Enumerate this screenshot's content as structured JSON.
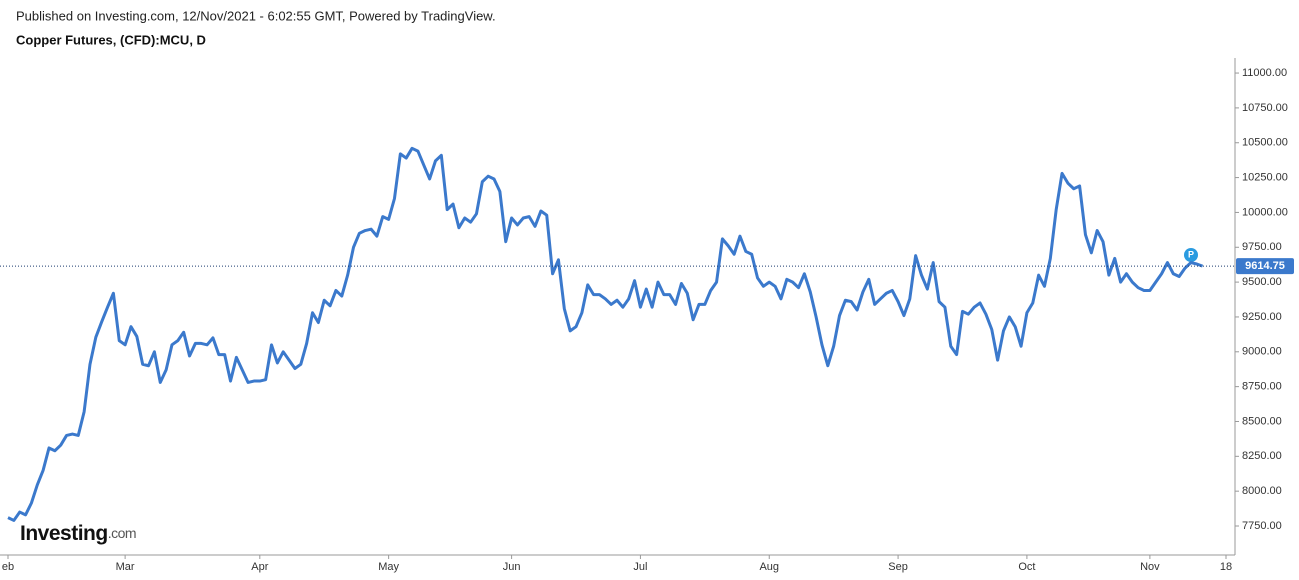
{
  "header": "Published on Investing.com, 12/Nov/2021 - 6:02:55 GMT, Powered by TradingView.",
  "logo": {
    "name": "Investing",
    "suffix": ".com"
  },
  "chart_data": {
    "type": "line",
    "title": "Copper Futures, (CFD):MCU, D",
    "categories": [
      "eb",
      null,
      null,
      null,
      null,
      null,
      null,
      null,
      null,
      null,
      null,
      null,
      null,
      null,
      null,
      null,
      null,
      null,
      null,
      null,
      "Mar",
      null,
      null,
      null,
      null,
      null,
      null,
      null,
      null,
      null,
      null,
      null,
      null,
      null,
      null,
      null,
      null,
      null,
      null,
      null,
      null,
      null,
      null,
      "Apr",
      null,
      null,
      null,
      null,
      null,
      null,
      null,
      null,
      null,
      null,
      null,
      null,
      null,
      null,
      null,
      null,
      null,
      null,
      null,
      null,
      null,
      "May",
      null,
      null,
      null,
      null,
      null,
      null,
      null,
      null,
      null,
      null,
      null,
      null,
      null,
      null,
      null,
      null,
      null,
      null,
      null,
      null,
      "Jun",
      null,
      null,
      null,
      null,
      null,
      null,
      null,
      null,
      null,
      null,
      null,
      null,
      null,
      null,
      null,
      null,
      null,
      null,
      null,
      null,
      null,
      "Jul",
      null,
      null,
      null,
      null,
      null,
      null,
      null,
      null,
      null,
      null,
      null,
      null,
      null,
      null,
      null,
      null,
      null,
      null,
      null,
      null,
      null,
      "Aug",
      null,
      null,
      null,
      null,
      null,
      null,
      null,
      null,
      null,
      null,
      null,
      null,
      null,
      null,
      null,
      null,
      null,
      null,
      null,
      null,
      null,
      "Sep",
      null,
      null,
      null,
      null,
      null,
      null,
      null,
      null,
      null,
      null,
      null,
      null,
      null,
      null,
      null,
      null,
      null,
      null,
      null,
      null,
      null,
      "Oct",
      null,
      null,
      null,
      null,
      null,
      null,
      null,
      null,
      null,
      null,
      null,
      null,
      null,
      null,
      null,
      null,
      null,
      null,
      null,
      null,
      "Nov",
      null,
      null,
      null,
      null,
      null,
      null,
      null,
      null,
      null,
      null,
      null,
      null,
      "18"
    ],
    "series": [
      {
        "color": "#3b79cc",
        "values": [
          7810,
          7790,
          7850,
          7830,
          7915,
          8045,
          8150,
          8310,
          8290,
          8330,
          8400,
          8410,
          8400,
          8570,
          8910,
          9105,
          9215,
          9320,
          9420,
          9080,
          9050,
          9180,
          9110,
          8910,
          8900,
          9000,
          8780,
          8870,
          9050,
          9080,
          9140,
          8970,
          9060,
          9060,
          9050,
          9100,
          8980,
          8980,
          8790,
          8960,
          8870,
          8780,
          8790,
          8790,
          8800,
          9050,
          8920,
          9000,
          8940,
          8880,
          8910,
          9060,
          9280,
          9210,
          9370,
          9330,
          9440,
          9400,
          9550,
          9750,
          9850,
          9870,
          9880,
          9830,
          9970,
          9950,
          10100,
          10420,
          10390,
          10460,
          10440,
          10340,
          10240,
          10370,
          10410,
          10020,
          10060,
          9890,
          9960,
          9930,
          9990,
          10220,
          10260,
          10240,
          10150,
          9790,
          9960,
          9910,
          9960,
          9970,
          9900,
          10010,
          9980,
          9560,
          9660,
          9310,
          9150,
          9180,
          9280,
          9480,
          9410,
          9410,
          9380,
          9340,
          9370,
          9320,
          9380,
          9510,
          9320,
          9450,
          9320,
          9500,
          9410,
          9410,
          9340,
          9490,
          9420,
          9230,
          9340,
          9340,
          9440,
          9500,
          9810,
          9760,
          9700,
          9830,
          9720,
          9700,
          9530,
          9470,
          9500,
          9470,
          9380,
          9520,
          9500,
          9460,
          9560,
          9430,
          9250,
          9050,
          8900,
          9040,
          9260,
          9370,
          9360,
          9300,
          9430,
          9520,
          9340,
          9380,
          9420,
          9440,
          9360,
          9260,
          9380,
          9690,
          9550,
          9450,
          9640,
          9360,
          9320,
          9040,
          8980,
          9290,
          9270,
          9320,
          9350,
          9270,
          9160,
          8940,
          9150,
          9250,
          9180,
          9040,
          9280,
          9350,
          9550,
          9470,
          9670,
          10020,
          10280,
          10210,
          10170,
          10190,
          9840,
          9710,
          9870,
          9790,
          9550,
          9670,
          9500,
          9560,
          9500,
          9460,
          9440,
          9440,
          9500,
          9560,
          9640,
          9560,
          9540,
          9600,
          9640,
          9630,
          9614.75,
          null,
          null,
          null,
          null
        ]
      }
    ],
    "ylim": [
      7542,
      11108
    ],
    "yticks": [
      {
        "value": 7750,
        "label": "7750.00"
      },
      {
        "value": 8000,
        "label": "8000.00"
      },
      {
        "value": 8250,
        "label": "8250.00"
      },
      {
        "value": 8500,
        "label": "8500.00"
      },
      {
        "value": 8750,
        "label": "8750.00"
      },
      {
        "value": 9000,
        "label": "9000.00"
      },
      {
        "value": 9250,
        "label": "9250.00"
      },
      {
        "value": 9500,
        "label": "9500.00"
      },
      {
        "value": 9750,
        "label": "9750.00"
      },
      {
        "value": 10000,
        "label": "10000.00"
      },
      {
        "value": 10250,
        "label": "10250.00"
      },
      {
        "value": 10500,
        "label": "10500.00"
      },
      {
        "value": 10750,
        "label": "10750.00"
      },
      {
        "value": 11000,
        "label": "11000.00"
      }
    ]
  }
}
